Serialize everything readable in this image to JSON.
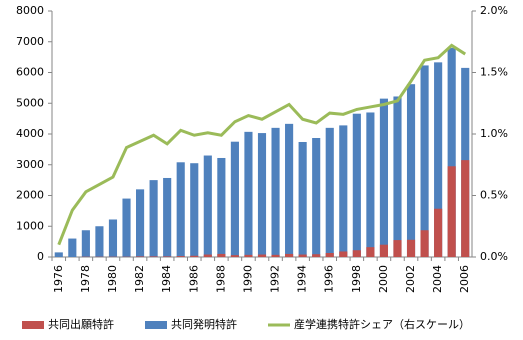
{
  "chart_data": {
    "type": "bar",
    "categories": [
      "1976",
      null,
      "1978",
      null,
      "1980",
      null,
      "1982",
      null,
      "1984",
      null,
      "1986",
      null,
      "1988",
      null,
      "1990",
      null,
      "1992",
      null,
      "1994",
      null,
      "1996",
      null,
      "1998",
      null,
      "2000",
      null,
      "2002",
      null,
      "2004",
      null,
      "2006"
    ],
    "series": [
      {
        "name": "共同発明特許",
        "color": "#4f81bd",
        "type": "bar",
        "values": [
          150,
          600,
          870,
          1000,
          1220,
          1900,
          2200,
          2500,
          2570,
          3080,
          3050,
          3300,
          3220,
          3750,
          4070,
          4030,
          4200,
          4330,
          3740,
          3870,
          4200,
          4280,
          4660,
          4700,
          5150,
          5220,
          5620,
          6230,
          6330,
          6800,
          6150
        ]
      },
      {
        "name": "共同出願特許",
        "color": "#c0504d",
        "type": "bar",
        "values": [
          0,
          0,
          10,
          10,
          10,
          10,
          20,
          20,
          20,
          30,
          40,
          80,
          100,
          60,
          70,
          80,
          70,
          100,
          80,
          90,
          130,
          180,
          220,
          320,
          400,
          550,
          560,
          870,
          1570,
          2950,
          3150
        ]
      },
      {
        "name": "産学連携特許シェア（右スケール）",
        "color": "#9bbb59",
        "type": "line",
        "axis": "y2",
        "values": [
          0.1,
          0.38,
          0.53,
          0.59,
          0.65,
          0.89,
          0.94,
          0.99,
          0.92,
          1.03,
          0.99,
          1.01,
          0.99,
          1.1,
          1.15,
          1.12,
          1.18,
          1.24,
          1.12,
          1.09,
          1.17,
          1.16,
          1.2,
          1.22,
          1.24,
          1.27,
          1.43,
          1.6,
          1.62,
          1.72,
          1.65
        ]
      }
    ],
    "ylim": [
      0,
      8000
    ],
    "yticks": [
      0,
      1000,
      2000,
      3000,
      4000,
      5000,
      6000,
      7000,
      8000
    ],
    "y2lim": [
      0,
      2
    ],
    "y2ticks": [
      {
        "value": 0,
        "label": "0.0%"
      },
      {
        "value": 0.5,
        "label": "0.5%"
      },
      {
        "value": 1,
        "label": "1.0%"
      },
      {
        "value": 1.5,
        "label": "1.5%"
      },
      {
        "value": 2,
        "label": "2.0%"
      }
    ],
    "legend": "bottom"
  }
}
